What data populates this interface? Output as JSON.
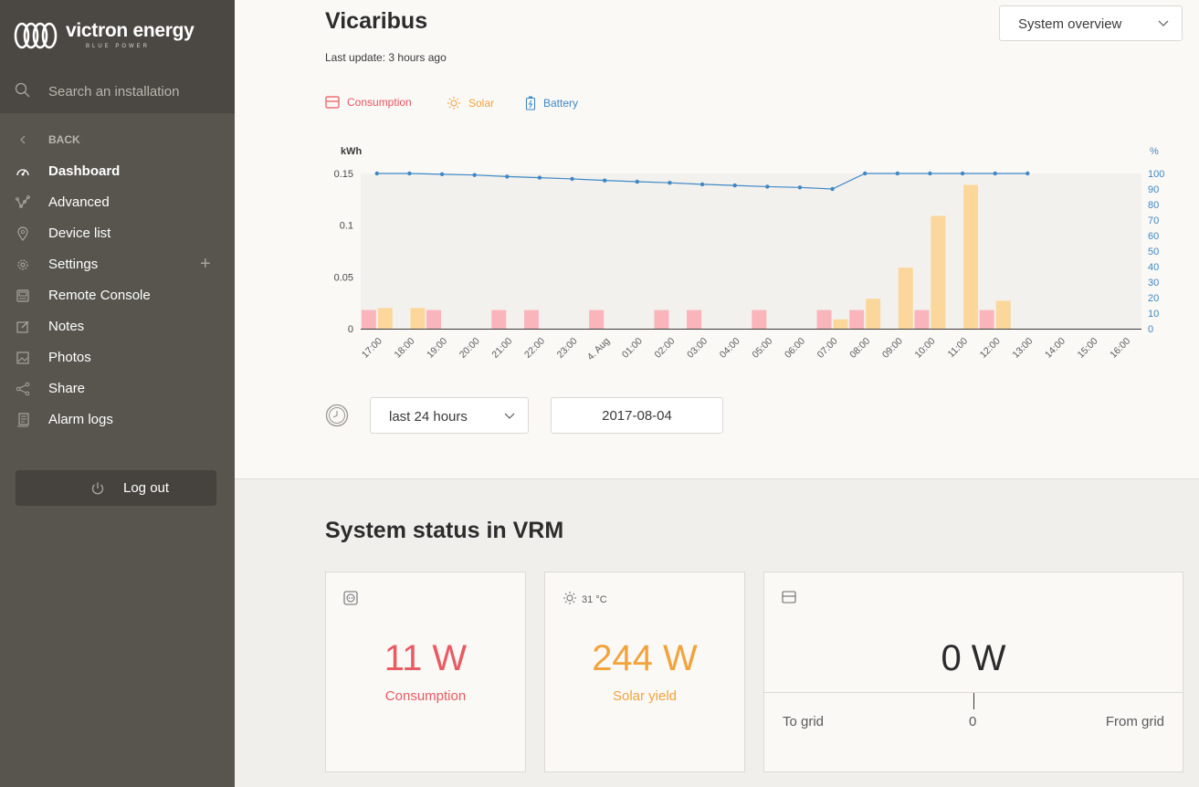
{
  "brand": {
    "name": "victron energy",
    "tagline": "BLUE POWER"
  },
  "search": {
    "placeholder": "Search an installation"
  },
  "nav": {
    "back": "BACK",
    "items": [
      {
        "label": "Dashboard",
        "icon": "gauge-icon"
      },
      {
        "label": "Advanced",
        "icon": "graph-icon"
      },
      {
        "label": "Device list",
        "icon": "location-pin-icon"
      },
      {
        "label": "Settings",
        "icon": "gear-icon"
      },
      {
        "label": "Remote Console",
        "icon": "console-icon"
      },
      {
        "label": "Notes",
        "icon": "edit-icon"
      },
      {
        "label": "Photos",
        "icon": "photo-icon"
      },
      {
        "label": "Share",
        "icon": "share-icon"
      },
      {
        "label": "Alarm logs",
        "icon": "log-icon"
      }
    ],
    "logout": "Log out"
  },
  "header": {
    "title": "Vicaribus",
    "last_update": "Last update: 3 hours ago",
    "view_select": "System overview"
  },
  "legend": {
    "consumption": "Consumption",
    "solar": "Solar",
    "battery": "Battery"
  },
  "colors": {
    "consumption": "#f9b5bb",
    "solar": "#fcd79c",
    "battery": "#3f88c5",
    "consumption_text": "#ea5a62",
    "solar_text": "#f2a33c"
  },
  "chart_data": {
    "type": "bar",
    "ylabel_left": "kWh",
    "ylabel_right": "%",
    "ylim_left": [
      0,
      0.15
    ],
    "yticks_left": [
      "0",
      "0.05",
      "0.1",
      "0.15"
    ],
    "ylim_right": [
      0,
      100
    ],
    "yticks_right": [
      "0",
      "10",
      "20",
      "30",
      "40",
      "50",
      "60",
      "70",
      "80",
      "90",
      "100"
    ],
    "categories": [
      "17:00",
      "18:00",
      "19:00",
      "20:00",
      "21:00",
      "22:00",
      "23:00",
      "4. Aug",
      "01:00",
      "02:00",
      "03:00",
      "04:00",
      "05:00",
      "06:00",
      "07:00",
      "08:00",
      "09:00",
      "10:00",
      "11:00",
      "12:00",
      "13:00",
      "14:00",
      "15:00",
      "16:00"
    ],
    "series": [
      {
        "name": "Consumption",
        "kind": "bar",
        "values": [
          0.018,
          0,
          0.018,
          0,
          0.018,
          0.018,
          0,
          0.018,
          0,
          0.018,
          0.018,
          0,
          0.018,
          0,
          0.018,
          0.018,
          0,
          0.018,
          0,
          0.018,
          0,
          0,
          0,
          0
        ]
      },
      {
        "name": "Solar",
        "kind": "bar",
        "values": [
          0.02,
          0.02,
          0,
          0,
          0,
          0,
          0,
          0,
          0,
          0,
          0,
          0,
          0,
          0,
          0.009,
          0.029,
          0.059,
          0.109,
          0.139,
          0.027,
          0,
          0,
          0,
          0
        ]
      },
      {
        "name": "Battery",
        "kind": "line",
        "axis": "right",
        "values": [
          100,
          100,
          99.5,
          99,
          98,
          97.3,
          96.5,
          95.5,
          94.7,
          94,
          93,
          92.3,
          91.5,
          91,
          90,
          100,
          100,
          100,
          100,
          100,
          100,
          null,
          null,
          null
        ]
      }
    ]
  },
  "range": {
    "selected": "last 24 hours",
    "date": "2017-08-04"
  },
  "status": {
    "title": "System status in VRM",
    "consumption": {
      "value": "11 W",
      "label": "Consumption"
    },
    "solar": {
      "temp": "31 °C",
      "value": "244 W",
      "label": "Solar yield"
    },
    "grid": {
      "value": "0 W",
      "to": "To grid",
      "zero": "0",
      "from": "From grid"
    }
  }
}
